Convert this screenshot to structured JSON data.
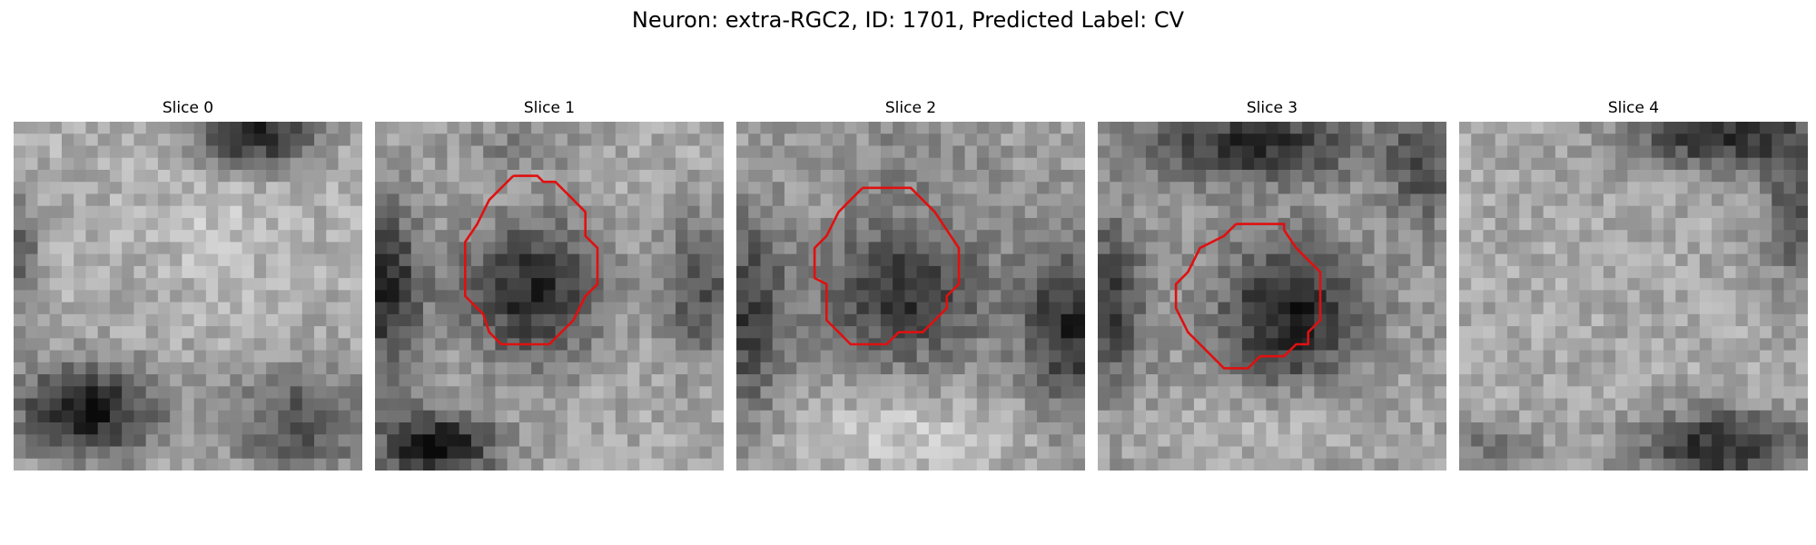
{
  "figure": {
    "suptitle": "Neuron: extra-RGC2, ID: 1701, Predicted Label: CV"
  },
  "colors": {
    "contour": "#e01010",
    "background": "#ffffff"
  },
  "slices": [
    {
      "title": "Slice 0",
      "has_contour": false,
      "seed": 11
    },
    {
      "title": "Slice 1",
      "has_contour": true,
      "seed": 23
    },
    {
      "title": "Slice 2",
      "has_contour": true,
      "seed": 37
    },
    {
      "title": "Slice 3",
      "has_contour": true,
      "seed": 53
    },
    {
      "title": "Slice 4",
      "has_contour": false,
      "seed": 71
    }
  ]
}
